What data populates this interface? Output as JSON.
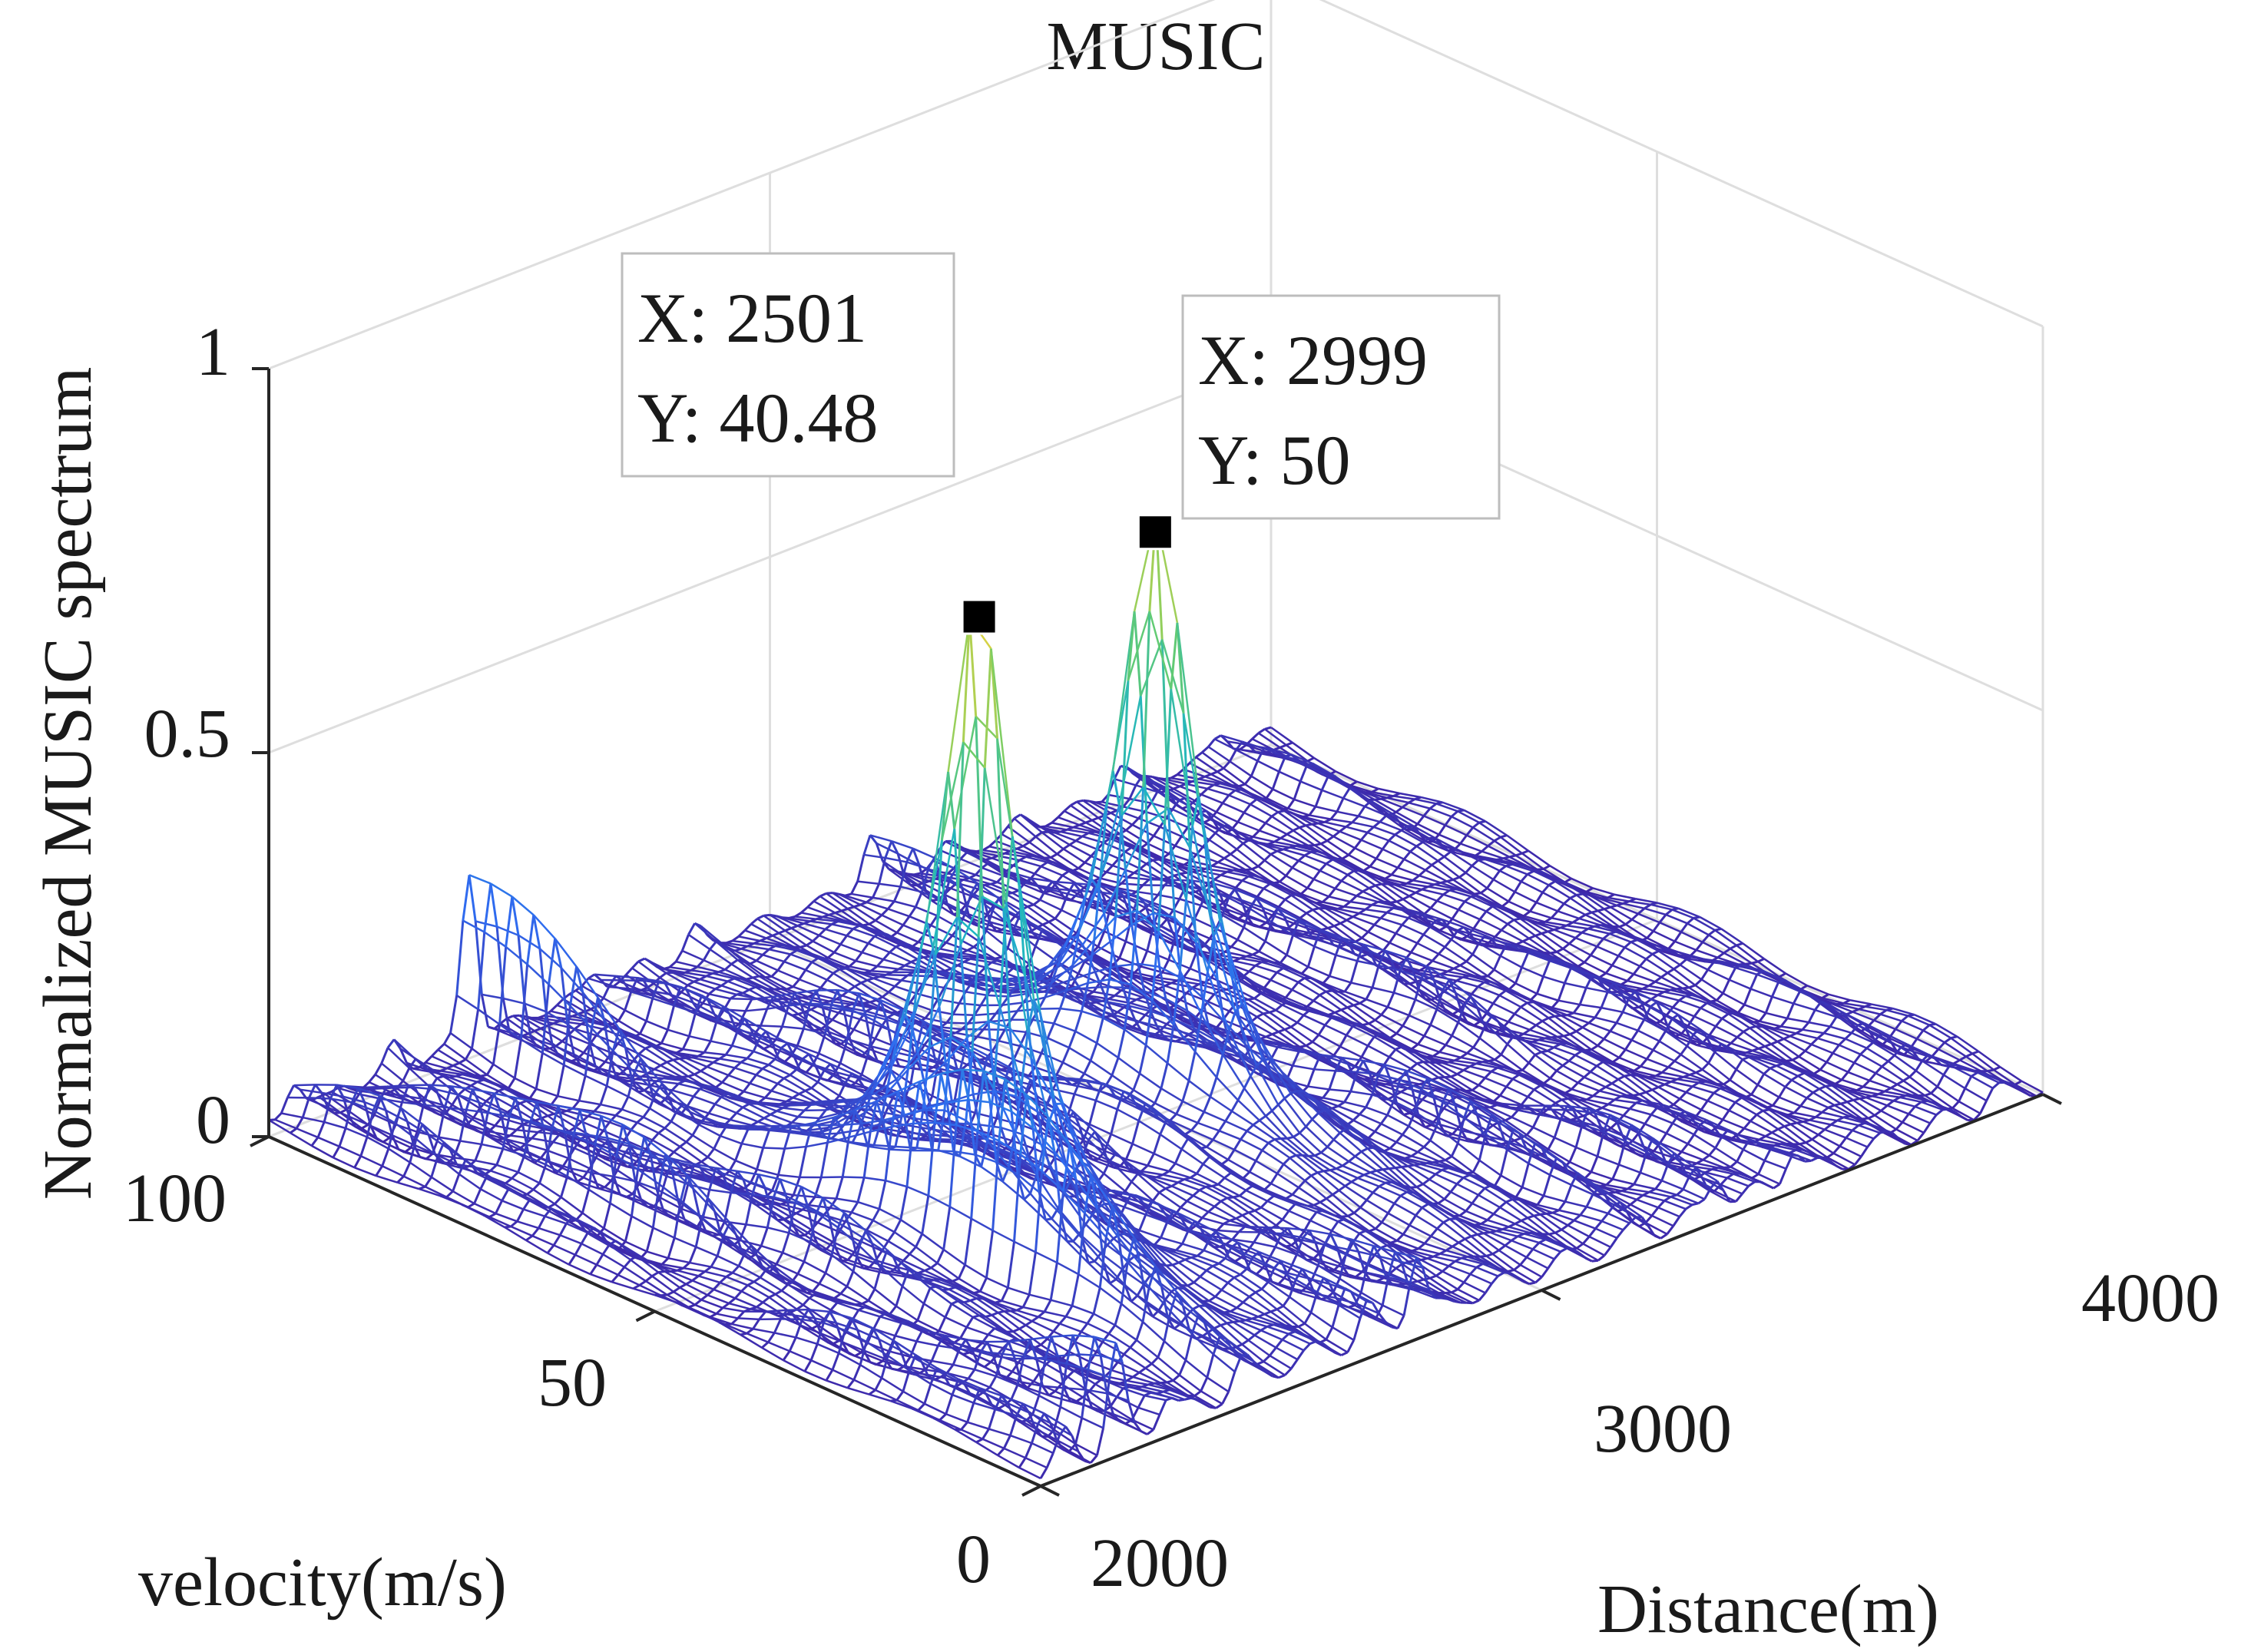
{
  "chart_data": {
    "type": "mesh3d",
    "title": "MUSIC",
    "xlabel": "Distance(m)",
    "ylabel": "velocity(m/s)",
    "zlabel": "Normalized MUSIC spectrum",
    "xlim": [
      2000,
      4000
    ],
    "ylim": [
      0,
      100
    ],
    "zlim": [
      0,
      1
    ],
    "x_ticks": [
      "2000",
      "3000",
      "4000"
    ],
    "y_ticks": [
      "0",
      "50",
      "100"
    ],
    "z_ticks": [
      "0",
      "0.5",
      "1"
    ],
    "grid": true,
    "colormap": [
      "#3e26a8",
      "#2f6cf0",
      "#1fb5c2",
      "#6acd6a",
      "#f6d33a"
    ],
    "peaks": [
      {
        "x": 2501,
        "y": 40.48,
        "z": 0.82,
        "label_x": "X: 2501",
        "label_y": "Y: 40.48"
      },
      {
        "x": 2999,
        "y": 50,
        "z": 0.76,
        "label_x": "X: 2999",
        "label_y": "Y: 50"
      }
    ],
    "ridges": [
      {
        "x": 2050,
        "z": 0.06
      },
      {
        "x": 2150,
        "z": 0.12
      },
      {
        "x": 2250,
        "z": 0.08
      },
      {
        "x": 2400,
        "z": 0.22
      },
      {
        "x": 2650,
        "z": 0.05
      },
      {
        "x": 2750,
        "z": 0.1
      },
      {
        "x": 2850,
        "z": 0.04
      },
      {
        "x": 3200,
        "z": 0.07
      },
      {
        "x": 3350,
        "z": 0.05
      },
      {
        "x": 3500,
        "z": 0.06
      },
      {
        "x": 3700,
        "z": 0.04
      },
      {
        "x": 3900,
        "z": 0.03
      }
    ]
  }
}
